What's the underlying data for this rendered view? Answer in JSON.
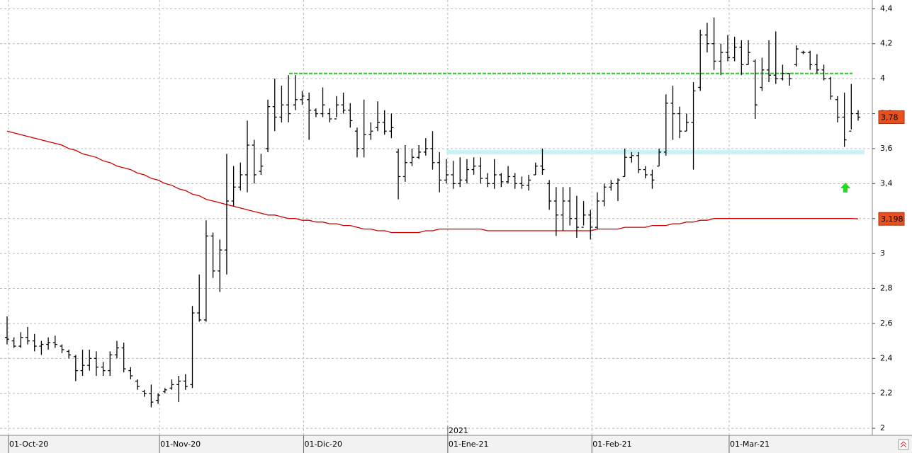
{
  "chart_data": {
    "type": "ohlc",
    "categories": [
      "01-Oct-20",
      null,
      null,
      null,
      null,
      null,
      null,
      null,
      null,
      null,
      null,
      null,
      null,
      null,
      null,
      null,
      null,
      null,
      null,
      null,
      null,
      null,
      "01-Nov-20",
      null,
      null,
      null,
      null,
      null,
      null,
      null,
      null,
      null,
      null,
      null,
      null,
      null,
      null,
      null,
      null,
      null,
      null,
      null,
      null,
      "01-Dic-20",
      null,
      null,
      null,
      null,
      null,
      null,
      null,
      null,
      null,
      null,
      null,
      null,
      null,
      null,
      null,
      null,
      null,
      null,
      null,
      null,
      "01-Ene-21",
      null,
      null,
      null,
      null,
      null,
      null,
      null,
      null,
      null,
      null,
      null,
      null,
      null,
      null,
      null,
      null,
      null,
      null,
      null,
      null,
      "01-Feb-21",
      null,
      null,
      null,
      null,
      null,
      null,
      null,
      null,
      null,
      null,
      null,
      null,
      null,
      null,
      null,
      null,
      null,
      null,
      null,
      "01-Mar-21",
      null,
      null,
      null,
      null,
      null,
      null,
      null,
      null,
      null,
      null,
      null,
      null,
      null,
      null,
      null,
      null,
      null,
      null,
      null
    ],
    "open": [
      2.52,
      2.5,
      2.47,
      2.52,
      2.5,
      2.47,
      2.48,
      2.49,
      2.47,
      2.44,
      2.41,
      2.33,
      2.36,
      2.4,
      2.35,
      2.33,
      2.42,
      2.46,
      2.33,
      2.27,
      2.21,
      2.2,
      2.16,
      2.21,
      2.23,
      2.25,
      2.27,
      2.25,
      2.66,
      2.62,
      3.1,
      2.9,
      3.02,
      3.3,
      3.38,
      3.45,
      3.62,
      3.47,
      3.6,
      3.84,
      3.78,
      3.85,
      3.85,
      3.88,
      3.88,
      3.82,
      3.8,
      3.8,
      3.77,
      3.85,
      3.82,
      3.7,
      3.6,
      3.68,
      3.72,
      3.75,
      3.7,
      3.58,
      3.44,
      3.52,
      3.55,
      3.58,
      3.6,
      3.52,
      3.42,
      3.45,
      3.4,
      3.42,
      3.48,
      3.5,
      3.43,
      3.4,
      3.45,
      3.41,
      3.44,
      3.4,
      3.39,
      3.45,
      3.5,
      3.4,
      3.3,
      3.22,
      3.3,
      3.2,
      3.15,
      3.22,
      3.15,
      3.3,
      3.38,
      3.4,
      3.44,
      3.55,
      3.56,
      3.48,
      3.45,
      3.5,
      3.58,
      3.86,
      3.8,
      3.7,
      3.75,
      3.95,
      4.25,
      4.2,
      4.1,
      4.15,
      4.12,
      4.18,
      4.08,
      4.1,
      3.95,
      4.05,
      4.02,
      4.0,
      4.03,
      4.08,
      4.15,
      4.15,
      4.08,
      4.05,
      4.0,
      3.88,
      3.78,
      3.7,
      3.8
    ],
    "high": [
      2.64,
      2.52,
      2.55,
      2.58,
      2.54,
      2.5,
      2.52,
      2.53,
      2.48,
      2.45,
      2.42,
      2.45,
      2.45,
      2.44,
      2.38,
      2.44,
      2.5,
      2.49,
      2.35,
      2.28,
      2.22,
      2.25,
      2.2,
      2.23,
      2.28,
      2.3,
      2.31,
      2.7,
      2.88,
      3.19,
      3.12,
      3.08,
      3.57,
      3.5,
      3.52,
      3.76,
      3.65,
      3.57,
      3.88,
      4.0,
      3.96,
      4.02,
      4.02,
      3.93,
      3.92,
      3.83,
      3.95,
      3.83,
      3.9,
      3.92,
      3.86,
      3.72,
      3.88,
      3.75,
      3.87,
      3.82,
      3.8,
      3.6,
      3.62,
      3.6,
      3.62,
      3.66,
      3.7,
      3.58,
      3.54,
      3.53,
      3.55,
      3.54,
      3.55,
      3.55,
      3.46,
      3.54,
      3.46,
      3.5,
      3.46,
      3.44,
      3.45,
      3.52,
      3.6,
      3.42,
      3.38,
      3.38,
      3.38,
      3.33,
      3.3,
      3.25,
      3.35,
      3.4,
      3.42,
      3.43,
      3.6,
      3.58,
      3.58,
      3.5,
      3.48,
      3.6,
      3.91,
      3.96,
      3.84,
      3.8,
      3.98,
      4.28,
      4.32,
      4.35,
      4.2,
      4.25,
      4.24,
      4.22,
      4.22,
      4.11,
      4.12,
      4.22,
      4.27,
      4.08,
      4.03,
      4.19,
      4.16,
      4.16,
      4.14,
      4.08,
      4.01,
      3.9,
      3.92,
      3.97,
      3.82
    ],
    "low": [
      2.48,
      2.46,
      2.46,
      2.48,
      2.44,
      2.42,
      2.45,
      2.46,
      2.43,
      2.4,
      2.27,
      2.3,
      2.33,
      2.3,
      2.3,
      2.3,
      2.4,
      2.32,
      2.28,
      2.22,
      2.18,
      2.12,
      2.14,
      2.2,
      2.22,
      2.15,
      2.22,
      2.23,
      2.61,
      2.61,
      2.86,
      2.78,
      2.88,
      3.27,
      3.36,
      3.35,
      3.4,
      3.45,
      3.58,
      3.7,
      3.75,
      3.75,
      3.82,
      3.85,
      3.65,
      3.78,
      3.78,
      3.75,
      3.78,
      3.8,
      3.72,
      3.55,
      3.55,
      3.65,
      3.7,
      3.68,
      3.66,
      3.31,
      3.41,
      3.5,
      3.54,
      3.56,
      3.48,
      3.35,
      3.4,
      3.37,
      3.38,
      3.4,
      3.45,
      3.4,
      3.38,
      3.37,
      3.38,
      3.4,
      3.37,
      3.37,
      3.36,
      3.45,
      3.45,
      3.25,
      3.1,
      3.13,
      3.16,
      3.09,
      3.16,
      3.08,
      3.14,
      3.27,
      3.36,
      3.3,
      3.44,
      3.52,
      3.46,
      3.43,
      3.37,
      3.5,
      3.56,
      3.65,
      3.66,
      3.7,
      3.48,
      3.93,
      4.15,
      4.05,
      4.02,
      4.1,
      4.1,
      4.02,
      4.08,
      3.77,
      3.93,
      3.98,
      3.97,
      3.99,
      3.96,
      4.07,
      4.14,
      4.05,
      4.03,
      3.99,
      3.88,
      3.75,
      3.61,
      3.71,
      3.76
    ],
    "close": [
      2.51,
      2.47,
      2.52,
      2.5,
      2.47,
      2.48,
      2.49,
      2.48,
      2.45,
      2.42,
      2.33,
      2.36,
      2.4,
      2.35,
      2.33,
      2.42,
      2.46,
      2.34,
      2.3,
      2.24,
      2.2,
      2.15,
      2.19,
      2.22,
      2.25,
      2.27,
      2.24,
      2.66,
      2.62,
      3.1,
      2.9,
      3.02,
      3.3,
      3.38,
      3.45,
      3.62,
      3.45,
      3.5,
      3.84,
      3.78,
      3.85,
      3.8,
      3.88,
      3.9,
      3.82,
      3.8,
      3.85,
      3.77,
      3.85,
      3.82,
      3.76,
      3.6,
      3.68,
      3.7,
      3.75,
      3.7,
      3.72,
      3.44,
      3.52,
      3.55,
      3.58,
      3.6,
      3.52,
      3.42,
      3.45,
      3.4,
      3.42,
      3.48,
      3.5,
      3.43,
      3.4,
      3.45,
      3.41,
      3.44,
      3.4,
      3.39,
      3.42,
      3.5,
      3.48,
      3.3,
      3.22,
      3.3,
      3.2,
      3.15,
      3.22,
      3.15,
      3.3,
      3.38,
      3.4,
      3.42,
      3.55,
      3.56,
      3.48,
      3.45,
      3.42,
      3.58,
      3.86,
      3.8,
      3.7,
      3.75,
      3.93,
      4.25,
      4.2,
      4.1,
      4.15,
      4.12,
      4.18,
      4.08,
      4.15,
      3.85,
      4.05,
      4.02,
      4.0,
      4.03,
      4.0,
      4.17,
      4.15,
      4.08,
      4.05,
      4.0,
      3.9,
      3.78,
      3.65,
      3.8,
      3.78
    ],
    "color": "#000000",
    "moving_average": {
      "color": "#cc0000",
      "values": [
        3.7,
        3.69,
        3.68,
        3.67,
        3.66,
        3.65,
        3.64,
        3.63,
        3.62,
        3.6,
        3.59,
        3.57,
        3.56,
        3.55,
        3.53,
        3.52,
        3.5,
        3.49,
        3.48,
        3.46,
        3.45,
        3.43,
        3.42,
        3.4,
        3.39,
        3.37,
        3.36,
        3.34,
        3.33,
        3.31,
        3.3,
        3.29,
        3.28,
        3.27,
        3.26,
        3.25,
        3.24,
        3.23,
        3.22,
        3.22,
        3.21,
        3.2,
        3.2,
        3.19,
        3.19,
        3.18,
        3.18,
        3.17,
        3.17,
        3.16,
        3.16,
        3.15,
        3.14,
        3.14,
        3.13,
        3.13,
        3.12,
        3.12,
        3.12,
        3.12,
        3.12,
        3.13,
        3.13,
        3.14,
        3.14,
        3.14,
        3.14,
        3.14,
        3.14,
        3.14,
        3.13,
        3.13,
        3.13,
        3.13,
        3.13,
        3.13,
        3.13,
        3.13,
        3.13,
        3.13,
        3.13,
        3.13,
        3.13,
        3.13,
        3.13,
        3.13,
        3.14,
        3.14,
        3.14,
        3.14,
        3.15,
        3.15,
        3.15,
        3.15,
        3.16,
        3.16,
        3.16,
        3.17,
        3.17,
        3.18,
        3.18,
        3.19,
        3.19,
        3.2,
        3.2,
        3.2,
        3.2,
        3.2,
        3.2,
        3.2,
        3.2,
        3.2,
        3.2,
        3.2,
        3.2,
        3.2,
        3.2,
        3.2,
        3.2,
        3.2,
        3.2,
        3.2,
        3.2,
        3.2,
        3.198
      ]
    },
    "levels": [
      {
        "value": 4.03,
        "color": "#22cc22"
      },
      {
        "value": 3.58,
        "color": "#c8f2f6"
      }
    ],
    "price_labels": [
      {
        "value": 3.78,
        "label": "3,78"
      },
      {
        "value": 3.198,
        "label": "3,198"
      }
    ],
    "year_label": "2021",
    "ylim": [
      1.96,
      4.45
    ],
    "yticks": [
      {
        "value": 2.0,
        "label": "2"
      },
      {
        "value": 2.2,
        "label": "2,2"
      },
      {
        "value": 2.4,
        "label": "2,4"
      },
      {
        "value": 2.6,
        "label": "2,6"
      },
      {
        "value": 2.8,
        "label": "2,8"
      },
      {
        "value": 3.0,
        "label": "3"
      },
      {
        "value": 3.2,
        "label": "3,2"
      },
      {
        "value": 3.4,
        "label": "3,4"
      },
      {
        "value": 3.6,
        "label": "3,6"
      },
      {
        "value": 3.8,
        "label": "3,8"
      },
      {
        "value": 4.0,
        "label": "4"
      },
      {
        "value": 4.2,
        "label": "4,2"
      },
      {
        "value": 4.4,
        "label": "4,4"
      }
    ],
    "grid": true
  }
}
